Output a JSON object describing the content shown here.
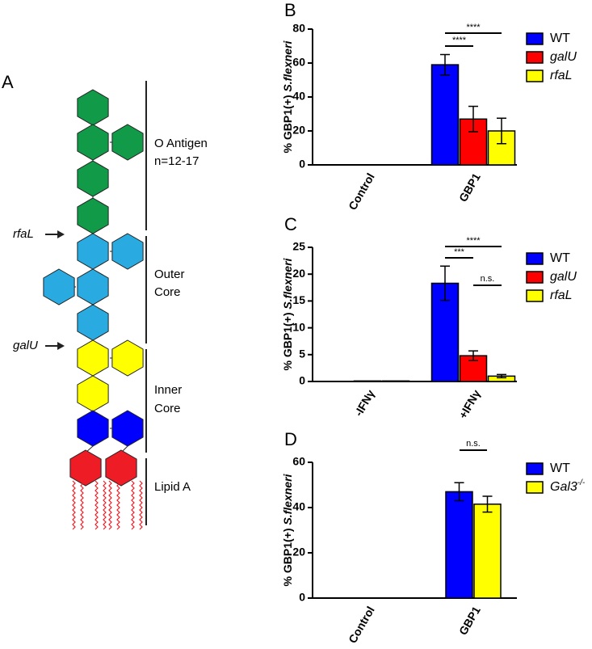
{
  "diagram": {
    "panel": "A",
    "sections": [
      [
        "O Antigen",
        "n=12-17"
      ],
      [
        "Outer",
        "Core"
      ],
      [
        "Inner",
        "Core"
      ],
      [
        "Lipid A"
      ]
    ],
    "arrows": [
      "rfaL",
      "galU"
    ]
  },
  "chart_data": [
    {
      "type": "bar",
      "panel": "B",
      "ylabel_parts": [
        "% GBP1(+) ",
        "S.flexneri"
      ],
      "categories": [
        "Control",
        "GBP1"
      ],
      "series": [
        {
          "name": "WT",
          "color": "#0000ff",
          "italic": false,
          "values": [
            0,
            59
          ],
          "errors": [
            0,
            6
          ]
        },
        {
          "name": "galU",
          "color": "#ff0000",
          "italic": true,
          "values": [
            0,
            27
          ],
          "errors": [
            0,
            7.5
          ]
        },
        {
          "name": "rfaL",
          "color": "#ffff00",
          "italic": true,
          "values": [
            0,
            20
          ],
          "errors": [
            0,
            7.5
          ]
        }
      ],
      "ylim": [
        0,
        80
      ],
      "yticks": [
        0,
        20,
        40,
        60,
        80
      ],
      "annotations": [
        "****",
        "****"
      ]
    },
    {
      "type": "bar",
      "panel": "C",
      "ylabel_parts": [
        "% GBP1(+) ",
        "S.flexneri"
      ],
      "categories": [
        "-IFNγ",
        "+IFNγ"
      ],
      "series": [
        {
          "name": "WT",
          "color": "#0000ff",
          "italic": false,
          "values": [
            0,
            18.3
          ],
          "errors": [
            0,
            3.2
          ]
        },
        {
          "name": "galU",
          "color": "#ff0000",
          "italic": true,
          "values": [
            0.1,
            4.8
          ],
          "errors": [
            0,
            0.9
          ]
        },
        {
          "name": "rfaL",
          "color": "#ffff00",
          "italic": true,
          "values": [
            0.1,
            1.0
          ],
          "errors": [
            0,
            0.3
          ]
        }
      ],
      "ylim": [
        0,
        25
      ],
      "yticks": [
        0,
        5,
        10,
        15,
        20,
        25
      ],
      "annotations": [
        "***",
        "****",
        "n.s."
      ]
    },
    {
      "type": "bar",
      "panel": "D",
      "ylabel_parts": [
        "% GBP1(+) ",
        "S.flexneri"
      ],
      "categories": [
        "Control",
        "GBP1"
      ],
      "series": [
        {
          "name": "WT",
          "color": "#0000ff",
          "italic": false,
          "values": [
            0,
            47
          ],
          "errors": [
            0,
            4
          ]
        },
        {
          "name": "Gal3",
          "name_sup": "-/-",
          "color": "#ffff00",
          "italic": true,
          "values": [
            0,
            41.5
          ],
          "errors": [
            0,
            3.5
          ]
        }
      ],
      "ylim": [
        0,
        60
      ],
      "yticks": [
        0,
        20,
        40,
        60
      ],
      "annotations": [
        "n.s."
      ]
    }
  ]
}
